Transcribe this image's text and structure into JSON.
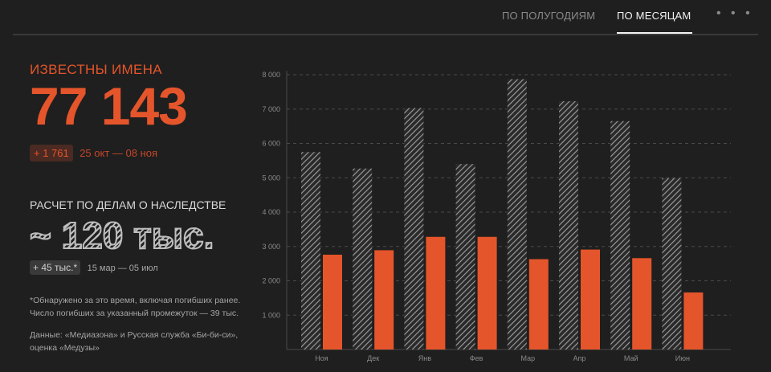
{
  "tabs": {
    "half_years": "По полугодиям",
    "months": "По месяцам",
    "more": "• • •"
  },
  "known": {
    "label": "ИЗВЕСТНЫ ИМЕНА",
    "value": "77 143",
    "delta": "+ 1 761",
    "range": "25 окт — 08 ноя"
  },
  "inheritance": {
    "label": "РАСЧЕТ ПО ДЕЛАМ О НАСЛЕДСТВЕ",
    "value": "~ 120 тыс.",
    "delta": "+ 45 тыс.*",
    "range": "15 мар — 05 июл"
  },
  "footnote": {
    "line1": "*Обнаружено за это время, включая погибших ранее.",
    "line2": "Число погибших за указанный промежуток — 39 тыс."
  },
  "source": {
    "line1": "Данные: «Медиазона» и Русская служба «Би-би-си»,",
    "line2": "оценка «Медузы»"
  },
  "colors": {
    "accent": "#e5552b",
    "hatch": "#9a9a9a",
    "background": "#1f1f1f"
  },
  "chart_data": {
    "type": "bar",
    "categories": [
      "Ноя",
      "Дек",
      "Янв",
      "Фев",
      "Мар",
      "Апр",
      "Май",
      "Июн"
    ],
    "series": [
      {
        "style": "hatched-gray",
        "values": [
          5750,
          5270,
          7030,
          5400,
          7870,
          7230,
          6650,
          4990
        ]
      },
      {
        "style": "solid-orange",
        "values": [
          2760,
          2890,
          3280,
          3280,
          2630,
          2910,
          2660,
          1660
        ]
      }
    ],
    "y_ticks": [
      "1 000",
      "2 000",
      "3 000",
      "4 000",
      "5 000",
      "6 000",
      "7 000",
      "8 000"
    ],
    "ylim": [
      0,
      8000
    ],
    "grid": true,
    "gridline_style": "dashed"
  }
}
